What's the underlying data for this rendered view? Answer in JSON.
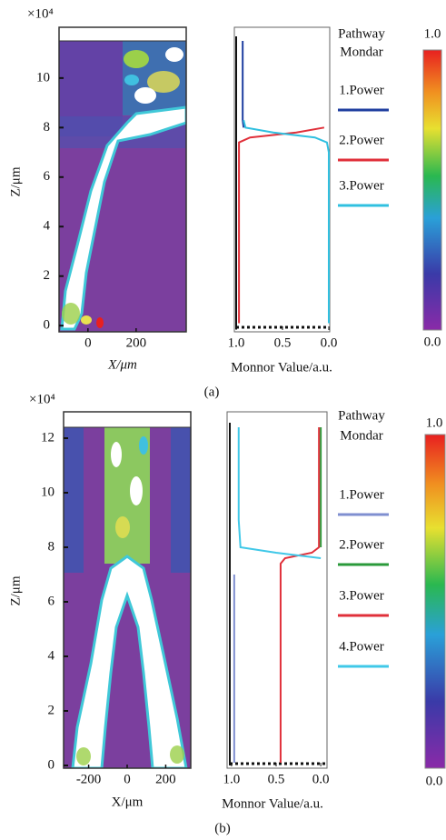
{
  "chart_data": [
    {
      "type": "heatmap",
      "ylabel": "Z/μm",
      "xlabel": "X/μm",
      "y_multiplier": "×10⁴",
      "xlim": [
        -120,
        408
      ],
      "ylim": [
        -0.25,
        11.5
      ],
      "xticks": [
        0,
        200
      ],
      "yticks": [
        0,
        2,
        4,
        6,
        8,
        10
      ]
    },
    {
      "type": "line",
      "xlabel": "Monnor Value/a.u.",
      "legend_title": [
        "Pathway",
        "Mondar"
      ],
      "caption": "(a)",
      "vlim": [
        1.02,
        -0.01
      ],
      "vticks": [
        {
          "value": 1,
          "label": "1.0"
        },
        {
          "value": 0.5,
          "label": "0.5"
        },
        {
          "value": 0,
          "label": "0.0"
        }
      ],
      "zlim": [
        -0.25,
        11.5
      ],
      "z": [
        0.1,
        1,
        2,
        3,
        4,
        5,
        6,
        7,
        7.4,
        7.6,
        7.8,
        8,
        8.3,
        9,
        10,
        11.5
      ],
      "series": [
        {
          "name": "1.Power",
          "color": "#1f3fa0",
          "values": [
            null,
            null,
            null,
            null,
            null,
            null,
            null,
            null,
            null,
            null,
            null,
            0.92,
            0.93,
            0.93,
            0.93,
            0.93
          ]
        },
        {
          "name": "2.Power",
          "color": "#e0303a",
          "values": [
            0.97,
            0.97,
            0.97,
            0.97,
            0.97,
            0.97,
            0.97,
            0.97,
            0.97,
            0.85,
            0.35,
            0.05,
            null,
            null,
            null,
            null
          ]
        },
        {
          "name": "3.Power",
          "color": "#30c0e0",
          "values": [
            0,
            0,
            0,
            0,
            0,
            0,
            0,
            0,
            0.02,
            0.15,
            0.6,
            0.9,
            0.92,
            null,
            null,
            null
          ]
        }
      ],
      "colorbar_ticks": [
        {
          "value": 1,
          "label": "1.0"
        },
        {
          "value": 0,
          "label": "0.0"
        }
      ]
    },
    {
      "type": "heatmap",
      "ylabel": "Z/μm",
      "xlabel": "X/μm",
      "y_multiplier": "×10⁴",
      "xlim": [
        -330,
        330
      ],
      "ylim": [
        -0.1,
        12.4
      ],
      "xticks": [
        -200,
        0,
        200
      ],
      "yticks": [
        0,
        2,
        4,
        6,
        8,
        10,
        12
      ]
    },
    {
      "type": "line",
      "xlabel": "Monnor Value/a.u.",
      "legend_title": [
        "Pathway",
        "Mondar"
      ],
      "caption": "(b)",
      "vlim": [
        1.05,
        -0.07
      ],
      "vticks": [
        {
          "value": 1,
          "label": "1.0"
        },
        {
          "value": 0.5,
          "label": "0.5"
        },
        {
          "value": 0,
          "label": "0.0"
        }
      ],
      "zlim": [
        -0.1,
        12.4
      ],
      "z": [
        0.1,
        1,
        2,
        3,
        4,
        5,
        6,
        7,
        7.4,
        7.6,
        7.8,
        8,
        9,
        10,
        11,
        12.4
      ],
      "series": [
        {
          "name": "1.Power",
          "color": "#7f8fd0",
          "values": [
            0.97,
            0.97,
            0.97,
            0.97,
            0.97,
            0.97,
            0.97,
            0.97,
            null,
            null,
            null,
            null,
            null,
            null,
            null,
            null
          ]
        },
        {
          "name": "2.Power",
          "color": "#2a9a3a",
          "values": [
            null,
            null,
            null,
            null,
            null,
            null,
            null,
            null,
            null,
            null,
            null,
            0,
            0,
            0,
            0,
            0
          ]
        },
        {
          "name": "3.Power",
          "color": "#e0303a",
          "values": [
            0.45,
            0.45,
            0.45,
            0.45,
            0.45,
            0.45,
            0.45,
            0.45,
            0.45,
            0.4,
            0.1,
            0.02,
            0.02,
            0.02,
            0.02,
            0.02
          ]
        },
        {
          "name": "4.Power",
          "color": "#40c8e8",
          "values": [
            null,
            null,
            null,
            null,
            null,
            null,
            null,
            null,
            null,
            0,
            0.5,
            0.9,
            0.92,
            0.92,
            0.92,
            0.92
          ]
        }
      ],
      "colorbar_ticks": [
        {
          "value": 1,
          "label": "1.0"
        },
        {
          "value": 0,
          "label": "0.0"
        }
      ]
    }
  ]
}
